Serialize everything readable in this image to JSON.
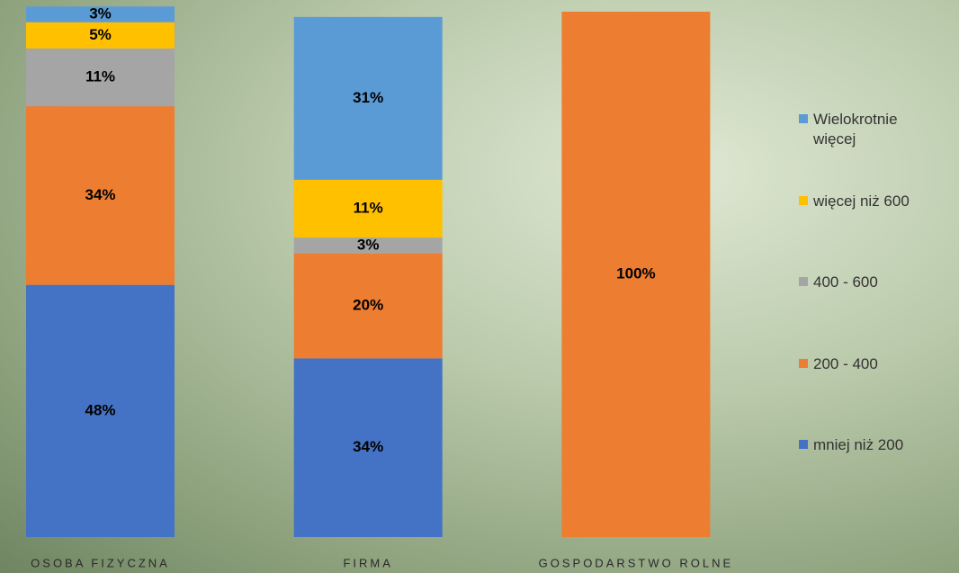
{
  "chart_data": {
    "type": "stacked-bar",
    "categories": [
      "OSOBA FIZYCZNA",
      "FIRMA",
      "GOSPODARSTWO ROLNE"
    ],
    "series": [
      {
        "name": "mniej niż 200",
        "color": "#4472c4",
        "values": [
          48,
          34,
          0
        ],
        "value_labels": [
          "48%",
          "34%",
          null
        ]
      },
      {
        "name": "200 - 400",
        "color": "#ed7d31",
        "values": [
          34,
          20,
          100
        ],
        "value_labels": [
          "34%",
          "20%",
          "100%"
        ]
      },
      {
        "name": "400 - 600",
        "color": "#a5a5a5",
        "values": [
          11,
          3,
          0
        ],
        "value_labels": [
          "11%",
          "3%",
          null
        ]
      },
      {
        "name": "więcej niż 600",
        "color": "#ffc000",
        "values": [
          5,
          11,
          0
        ],
        "value_labels": [
          "5%",
          "11%",
          null
        ]
      },
      {
        "name": "Wielokrotnie więcej",
        "color": "#5b9bd5",
        "values": [
          3,
          31,
          0
        ],
        "value_labels": [
          "3%",
          "31%",
          null
        ]
      }
    ],
    "legend": "right"
  }
}
